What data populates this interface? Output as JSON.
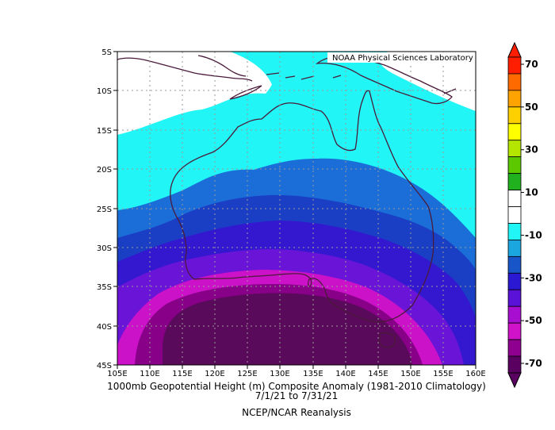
{
  "credit": "NOAA Physical Sciences Laboratory",
  "title": {
    "line1": "1000mb Geopotential Height (m) Composite Anomaly (1981-2010 Climatology)",
    "line2": "7/1/21   to 7/31/21",
    "line3": "NCEP/NCAR Reanalysis"
  },
  "map": {
    "lon_range": [
      105,
      160
    ],
    "lat_range": [
      -45,
      -5
    ],
    "lon_ticks": [
      "105E",
      "110E",
      "115E",
      "120E",
      "125E",
      "130E",
      "135E",
      "140E",
      "145E",
      "150E",
      "155E",
      "160E"
    ],
    "lat_ticks": [
      "5S",
      "10S",
      "15S",
      "20S",
      "25S",
      "30S",
      "35S",
      "40S",
      "45S"
    ],
    "grid": true,
    "coastline_color": "#4a1a3a"
  },
  "colorbar": {
    "orientation": "vertical",
    "extend": "both",
    "labels": [
      "70",
      "50",
      "30",
      "10",
      "-10",
      "-30",
      "-50",
      "-70"
    ],
    "colors": [
      "#ff1e00",
      "#ff6a00",
      "#ffa300",
      "#ffd000",
      "#ffff00",
      "#b5e600",
      "#5cc800",
      "#22b11e",
      "#ffffff",
      "#ffffff",
      "#22f5f5",
      "#1ba6e0",
      "#1855c8",
      "#2a18d2",
      "#5a12d8",
      "#a70ed0",
      "#d012c8",
      "#900090",
      "#5a0060"
    ]
  },
  "contour_colors": {
    "white": "#ffffff",
    "cyan": "#22f5f5",
    "light_blue": "#1b6ed8",
    "blue": "#1a3fc4",
    "indigo": "#3418d0",
    "violet": "#6a14d8",
    "purple": "#9b12d0",
    "magenta": "#cc12c8",
    "dark_magenta": "#870087",
    "deep_purple": "#5a0a5a"
  }
}
